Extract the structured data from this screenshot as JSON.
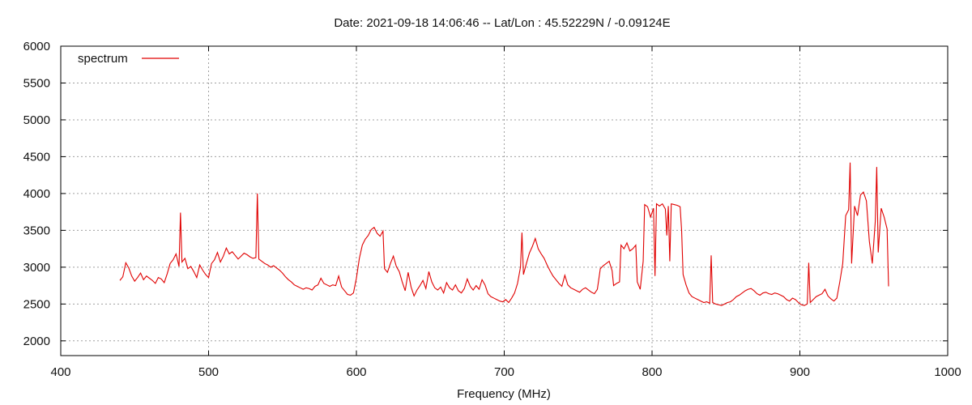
{
  "chart_data": {
    "type": "line",
    "title": "Date: 2021-09-18 14:06:46  --  Lat/Lon : 45.52229N / -0.09124E",
    "xlabel": "Frequency (MHz)",
    "ylabel": "",
    "xlim": [
      400,
      1000
    ],
    "ylim": [
      1800,
      6000
    ],
    "x_ticks": [
      400,
      500,
      600,
      700,
      800,
      900,
      1000
    ],
    "y_ticks": [
      2000,
      2500,
      3000,
      3500,
      4000,
      4500,
      5000,
      5500,
      6000
    ],
    "grid": true,
    "legend_position": "top-left",
    "series": [
      {
        "name": "spectrum",
        "color": "#e00000",
        "points": [
          [
            440,
            2820
          ],
          [
            442,
            2870
          ],
          [
            444,
            3060
          ],
          [
            446,
            2990
          ],
          [
            448,
            2880
          ],
          [
            450,
            2810
          ],
          [
            452,
            2860
          ],
          [
            454,
            2920
          ],
          [
            456,
            2830
          ],
          [
            458,
            2880
          ],
          [
            460,
            2850
          ],
          [
            462,
            2820
          ],
          [
            464,
            2780
          ],
          [
            466,
            2860
          ],
          [
            468,
            2840
          ],
          [
            470,
            2790
          ],
          [
            472,
            2910
          ],
          [
            474,
            3050
          ],
          [
            476,
            3100
          ],
          [
            478,
            3180
          ],
          [
            480,
            3010
          ],
          [
            481,
            3740
          ],
          [
            482,
            3070
          ],
          [
            484,
            3120
          ],
          [
            486,
            2980
          ],
          [
            488,
            3010
          ],
          [
            490,
            2940
          ],
          [
            492,
            2860
          ],
          [
            494,
            3030
          ],
          [
            496,
            2960
          ],
          [
            498,
            2900
          ],
          [
            500,
            2860
          ],
          [
            502,
            3050
          ],
          [
            504,
            3100
          ],
          [
            506,
            3200
          ],
          [
            508,
            3070
          ],
          [
            510,
            3150
          ],
          [
            512,
            3260
          ],
          [
            514,
            3180
          ],
          [
            516,
            3210
          ],
          [
            518,
            3160
          ],
          [
            520,
            3110
          ],
          [
            522,
            3150
          ],
          [
            524,
            3190
          ],
          [
            526,
            3170
          ],
          [
            528,
            3140
          ],
          [
            530,
            3120
          ],
          [
            532,
            3130
          ],
          [
            533,
            4000
          ],
          [
            534,
            3110
          ],
          [
            536,
            3080
          ],
          [
            538,
            3050
          ],
          [
            540,
            3030
          ],
          [
            542,
            3000
          ],
          [
            544,
            3020
          ],
          [
            546,
            2990
          ],
          [
            548,
            2960
          ],
          [
            550,
            2920
          ],
          [
            552,
            2870
          ],
          [
            554,
            2830
          ],
          [
            556,
            2800
          ],
          [
            558,
            2760
          ],
          [
            560,
            2740
          ],
          [
            562,
            2720
          ],
          [
            564,
            2700
          ],
          [
            566,
            2720
          ],
          [
            568,
            2710
          ],
          [
            570,
            2690
          ],
          [
            572,
            2740
          ],
          [
            574,
            2760
          ],
          [
            576,
            2850
          ],
          [
            578,
            2780
          ],
          [
            580,
            2760
          ],
          [
            582,
            2740
          ],
          [
            584,
            2760
          ],
          [
            586,
            2750
          ],
          [
            588,
            2880
          ],
          [
            590,
            2730
          ],
          [
            592,
            2680
          ],
          [
            594,
            2630
          ],
          [
            596,
            2620
          ],
          [
            598,
            2650
          ],
          [
            600,
            2850
          ],
          [
            602,
            3120
          ],
          [
            604,
            3300
          ],
          [
            606,
            3380
          ],
          [
            608,
            3430
          ],
          [
            610,
            3510
          ],
          [
            612,
            3540
          ],
          [
            614,
            3460
          ],
          [
            616,
            3420
          ],
          [
            618,
            3490
          ],
          [
            619,
            2980
          ],
          [
            621,
            2930
          ],
          [
            623,
            3050
          ],
          [
            625,
            3150
          ],
          [
            627,
            3010
          ],
          [
            629,
            2940
          ],
          [
            631,
            2800
          ],
          [
            633,
            2680
          ],
          [
            635,
            2930
          ],
          [
            637,
            2730
          ],
          [
            639,
            2610
          ],
          [
            641,
            2690
          ],
          [
            643,
            2750
          ],
          [
            645,
            2820
          ],
          [
            647,
            2710
          ],
          [
            649,
            2940
          ],
          [
            651,
            2800
          ],
          [
            653,
            2720
          ],
          [
            655,
            2690
          ],
          [
            657,
            2730
          ],
          [
            659,
            2650
          ],
          [
            661,
            2790
          ],
          [
            663,
            2720
          ],
          [
            665,
            2690
          ],
          [
            667,
            2760
          ],
          [
            669,
            2680
          ],
          [
            671,
            2650
          ],
          [
            673,
            2710
          ],
          [
            675,
            2840
          ],
          [
            677,
            2740
          ],
          [
            679,
            2690
          ],
          [
            681,
            2750
          ],
          [
            683,
            2700
          ],
          [
            685,
            2830
          ],
          [
            687,
            2760
          ],
          [
            689,
            2640
          ],
          [
            691,
            2600
          ],
          [
            693,
            2580
          ],
          [
            695,
            2560
          ],
          [
            697,
            2540
          ],
          [
            699,
            2530
          ],
          [
            701,
            2560
          ],
          [
            703,
            2520
          ],
          [
            705,
            2580
          ],
          [
            707,
            2650
          ],
          [
            709,
            2780
          ],
          [
            711,
            3000
          ],
          [
            712,
            3470
          ],
          [
            713,
            2900
          ],
          [
            715,
            3050
          ],
          [
            717,
            3190
          ],
          [
            719,
            3280
          ],
          [
            721,
            3390
          ],
          [
            723,
            3250
          ],
          [
            725,
            3180
          ],
          [
            727,
            3120
          ],
          [
            729,
            3030
          ],
          [
            731,
            2950
          ],
          [
            733,
            2880
          ],
          [
            735,
            2830
          ],
          [
            737,
            2780
          ],
          [
            739,
            2740
          ],
          [
            741,
            2890
          ],
          [
            743,
            2760
          ],
          [
            745,
            2720
          ],
          [
            747,
            2700
          ],
          [
            749,
            2680
          ],
          [
            751,
            2660
          ],
          [
            753,
            2700
          ],
          [
            755,
            2720
          ],
          [
            757,
            2690
          ],
          [
            759,
            2660
          ],
          [
            761,
            2640
          ],
          [
            763,
            2700
          ],
          [
            765,
            2980
          ],
          [
            767,
            3020
          ],
          [
            769,
            3050
          ],
          [
            771,
            3080
          ],
          [
            773,
            2950
          ],
          [
            774,
            2750
          ],
          [
            776,
            2780
          ],
          [
            778,
            2800
          ],
          [
            779,
            3300
          ],
          [
            781,
            3250
          ],
          [
            783,
            3330
          ],
          [
            785,
            3220
          ],
          [
            787,
            3250
          ],
          [
            789,
            3300
          ],
          [
            790,
            2800
          ],
          [
            792,
            2700
          ],
          [
            794,
            3080
          ],
          [
            795,
            3850
          ],
          [
            797,
            3820
          ],
          [
            799,
            3680
          ],
          [
            801,
            3800
          ],
          [
            802,
            2880
          ],
          [
            803,
            3860
          ],
          [
            805,
            3830
          ],
          [
            807,
            3860
          ],
          [
            809,
            3790
          ],
          [
            810,
            3430
          ],
          [
            811,
            3830
          ],
          [
            812,
            3080
          ],
          [
            813,
            3860
          ],
          [
            815,
            3850
          ],
          [
            817,
            3840
          ],
          [
            819,
            3820
          ],
          [
            820,
            3500
          ],
          [
            821,
            2900
          ],
          [
            823,
            2760
          ],
          [
            825,
            2650
          ],
          [
            827,
            2600
          ],
          [
            829,
            2580
          ],
          [
            831,
            2560
          ],
          [
            833,
            2540
          ],
          [
            835,
            2520
          ],
          [
            837,
            2530
          ],
          [
            839,
            2510
          ],
          [
            840,
            3160
          ],
          [
            841,
            2520
          ],
          [
            843,
            2500
          ],
          [
            845,
            2490
          ],
          [
            847,
            2480
          ],
          [
            849,
            2500
          ],
          [
            851,
            2520
          ],
          [
            853,
            2530
          ],
          [
            855,
            2560
          ],
          [
            857,
            2600
          ],
          [
            859,
            2620
          ],
          [
            861,
            2650
          ],
          [
            863,
            2680
          ],
          [
            865,
            2700
          ],
          [
            867,
            2710
          ],
          [
            869,
            2680
          ],
          [
            871,
            2640
          ],
          [
            873,
            2620
          ],
          [
            875,
            2650
          ],
          [
            877,
            2660
          ],
          [
            879,
            2640
          ],
          [
            881,
            2630
          ],
          [
            883,
            2650
          ],
          [
            885,
            2640
          ],
          [
            887,
            2620
          ],
          [
            889,
            2600
          ],
          [
            891,
            2560
          ],
          [
            893,
            2540
          ],
          [
            895,
            2580
          ],
          [
            897,
            2560
          ],
          [
            899,
            2520
          ],
          [
            901,
            2490
          ],
          [
            903,
            2480
          ],
          [
            905,
            2500
          ],
          [
            906,
            3060
          ],
          [
            907,
            2520
          ],
          [
            909,
            2560
          ],
          [
            911,
            2600
          ],
          [
            913,
            2620
          ],
          [
            915,
            2640
          ],
          [
            917,
            2700
          ],
          [
            919,
            2610
          ],
          [
            921,
            2570
          ],
          [
            923,
            2540
          ],
          [
            925,
            2580
          ],
          [
            927,
            2800
          ],
          [
            929,
            3050
          ],
          [
            931,
            3700
          ],
          [
            933,
            3780
          ],
          [
            934,
            4420
          ],
          [
            935,
            3050
          ],
          [
            937,
            3830
          ],
          [
            939,
            3700
          ],
          [
            941,
            3980
          ],
          [
            943,
            4020
          ],
          [
            945,
            3900
          ],
          [
            947,
            3350
          ],
          [
            949,
            3050
          ],
          [
            951,
            3620
          ],
          [
            952,
            4360
          ],
          [
            953,
            3200
          ],
          [
            955,
            3800
          ],
          [
            957,
            3680
          ],
          [
            959,
            3520
          ],
          [
            960,
            2740
          ]
        ]
      }
    ]
  }
}
